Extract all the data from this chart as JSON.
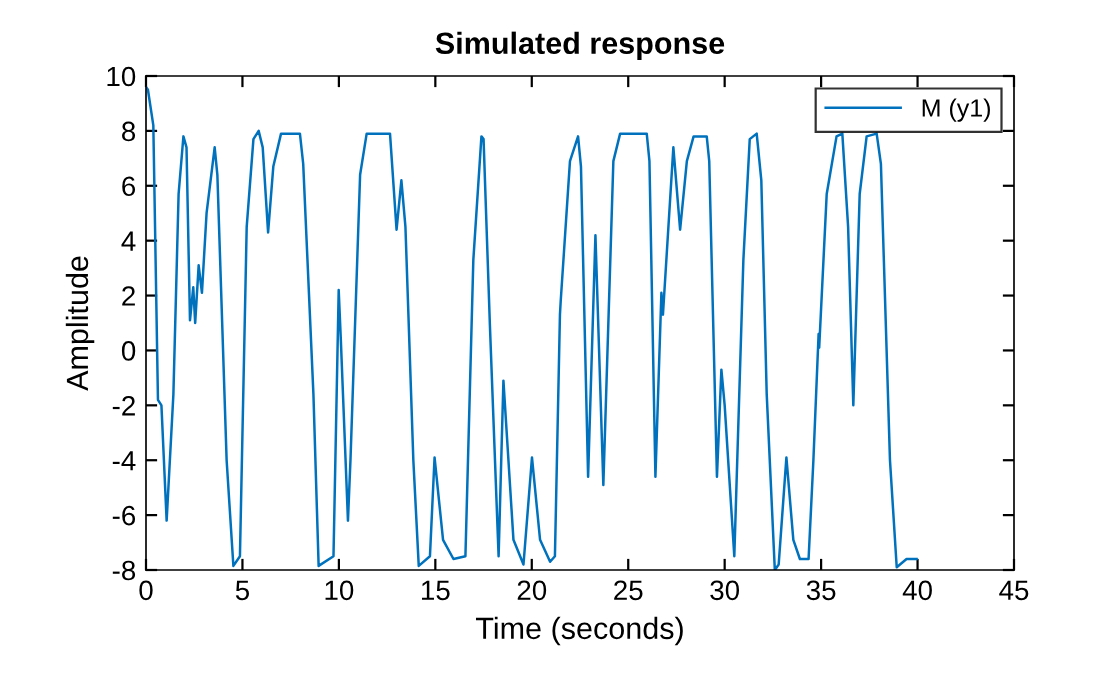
{
  "chart_data": {
    "type": "line",
    "title": "Simulated response",
    "xlabel": "Time (seconds)",
    "ylabel": "Amplitude",
    "xlim": [
      0,
      45
    ],
    "xticks": [
      0,
      5,
      10,
      15,
      20,
      25,
      30,
      35,
      40,
      45
    ],
    "ylim": [
      -8,
      10
    ],
    "yticks": [
      -8,
      -6,
      -4,
      -2,
      0,
      2,
      4,
      6,
      8,
      10
    ],
    "grid": false,
    "legend": "top right",
    "line_style": "solid",
    "marker": "none",
    "series": [
      {
        "name": "M (y1)",
        "color": "#0072bd",
        "x": [
          0,
          0.1,
          0.38,
          0.62,
          0.8,
          1.07,
          1.42,
          1.69,
          1.94,
          2.1,
          2.28,
          2.45,
          2.55,
          2.73,
          2.9,
          3.14,
          3.56,
          3.7,
          4.18,
          4.53,
          4.87,
          5.22,
          5.57,
          5.84,
          6.05,
          6.33,
          6.6,
          7.0,
          7.98,
          8.15,
          8.68,
          8.95,
          9.72,
          9.99,
          10.1,
          10.47,
          10.6,
          11.1,
          11.44,
          12.65,
          12.99,
          13.24,
          13.45,
          13.86,
          14.14,
          14.72,
          14.96,
          15.4,
          15.94,
          16.56,
          16.97,
          17.39,
          17.5,
          17.83,
          18.28,
          18.53,
          19.05,
          19.57,
          20.01,
          20.43,
          20.95,
          21.2,
          21.46,
          21.5,
          21.98,
          22.4,
          22.55,
          22.92,
          23.3,
          23.71,
          24.23,
          24.58,
          25.96,
          26.1,
          26.41,
          26.72,
          26.8,
          27.34,
          27.69,
          28.04,
          28.39,
          29.07,
          29.2,
          29.6,
          29.83,
          30.0,
          30.5,
          30.97,
          31.3,
          31.66,
          31.9,
          32.18,
          32.6,
          32.8,
          33.2,
          33.56,
          33.9,
          34.35,
          34.6,
          34.87,
          34.9,
          35.29,
          35.8,
          36.1,
          36.4,
          36.67,
          37.0,
          37.36,
          37.88,
          38.1,
          38.57,
          38.92,
          39.43,
          39.95
        ],
        "values": [
          9.6,
          9.5,
          8.2,
          -1.8,
          -2.0,
          -6.2,
          -1.6,
          5.7,
          7.8,
          7.4,
          1.1,
          2.3,
          1.0,
          3.1,
          2.1,
          5.0,
          7.4,
          6.4,
          -4.0,
          -7.85,
          -7.5,
          4.5,
          7.7,
          8.0,
          7.4,
          4.3,
          6.7,
          7.9,
          7.9,
          6.8,
          -1.6,
          -7.85,
          -7.5,
          2.2,
          0.4,
          -6.2,
          -4.0,
          6.4,
          7.9,
          7.9,
          4.4,
          6.2,
          4.5,
          -4.0,
          -7.85,
          -7.5,
          -3.9,
          -6.9,
          -7.6,
          -7.5,
          3.3,
          7.8,
          7.7,
          0.9,
          -7.5,
          -1.1,
          -6.9,
          -7.8,
          -3.9,
          -6.9,
          -7.7,
          -7.5,
          1.3,
          1.8,
          6.9,
          7.8,
          6.7,
          -4.6,
          4.2,
          -4.9,
          6.9,
          7.9,
          7.9,
          6.9,
          -4.6,
          2.1,
          1.3,
          7.4,
          4.4,
          6.9,
          7.8,
          7.8,
          6.9,
          -4.6,
          -0.7,
          -2.0,
          -7.5,
          3.3,
          7.7,
          7.9,
          6.2,
          -1.6,
          -8.0,
          -7.8,
          -3.9,
          -6.9,
          -7.6,
          -7.6,
          -4.0,
          0.6,
          0.1,
          5.7,
          7.8,
          7.9,
          4.5,
          -2.0,
          5.7,
          7.8,
          7.9,
          6.8,
          -4.0,
          -7.9,
          -7.6,
          -7.6
        ]
      }
    ]
  }
}
